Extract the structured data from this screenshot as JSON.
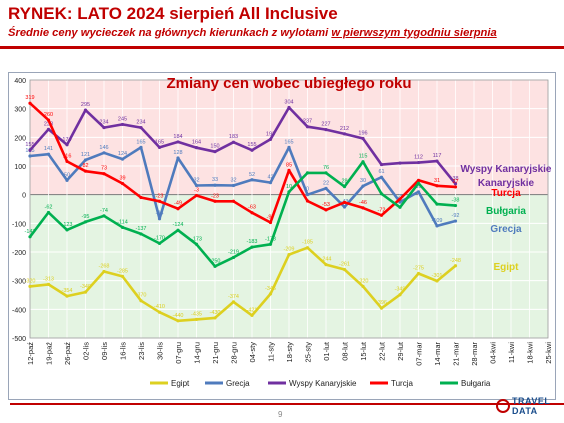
{
  "header": {
    "title": "RYNEK: LATO 2024 sierpień All Inclusive",
    "subtitle_pre": "Średnie ceny wycieczek na głównych kierunkach z wylotami ",
    "subtitle_underline": "w pierwszym tygodniu sierpnia"
  },
  "footer": {
    "page_number": "9",
    "logo_line1": "TRAVEL",
    "logo_line2": "DATA"
  },
  "chart_data": {
    "type": "line",
    "title": "Zmiany cen wobec ubiegłego roku",
    "ylim": [
      -500,
      400
    ],
    "yticks": [
      400,
      300,
      200,
      100,
      0,
      -100,
      -200,
      -300,
      -400,
      -500
    ],
    "categories": [
      "12-paź",
      "19-paź",
      "26-paź",
      "02-lis",
      "09-lis",
      "16-lis",
      "23-lis",
      "30-lis",
      "07-gru",
      "14-gru",
      "21-gru",
      "28-gru",
      "04-sty",
      "11-sty",
      "18-sty",
      "25-sty",
      "01-lut",
      "08-lut",
      "15-lut",
      "22-lut",
      "29-lut",
      "07-mar",
      "14-mar",
      "21-mar",
      "28-mar",
      "04-kwi",
      "11-kwi",
      "18-kwi",
      "25-kwi"
    ],
    "legend_position": "bottom",
    "grid": true,
    "series": [
      {
        "name": "Egipt",
        "color": "#ddd020",
        "values": [
          -320,
          -313,
          -354,
          -340,
          -268,
          -285,
          -370,
          -410,
          -440,
          -435,
          -430,
          -374,
          -421,
          -346,
          -209,
          -185,
          -244,
          -261,
          -320,
          -396,
          -349,
          -275,
          -301,
          -248,
          null,
          null,
          null,
          null,
          null
        ],
        "labels": [
          "-320",
          "-313",
          "-354",
          "-340",
          "-268",
          "-285",
          "-370",
          "-410",
          "-440",
          "-435",
          "-430",
          "-374",
          "-421",
          "-346",
          "-209",
          "-185",
          "-244",
          "-261",
          "-320",
          "-396",
          "-349",
          "-275",
          "-301",
          "-248",
          "",
          "",
          "",
          "",
          ""
        ]
      },
      {
        "name": "Grecja",
        "color": "#4f7bbd",
        "values": [
          135,
          141,
          50,
          121,
          146,
          124,
          165,
          -84,
          128,
          32,
          33,
          32,
          52,
          42,
          165,
          0,
          22,
          -43,
          30,
          61,
          -26,
          10,
          -109,
          -92,
          null,
          null,
          null,
          null,
          null
        ],
        "labels": [
          "135",
          "141",
          "50",
          "121",
          "146",
          "124",
          "165",
          "-84",
          "128",
          "32",
          "33",
          "32",
          "52",
          "42",
          "165",
          "0",
          "22",
          "-43",
          "30",
          "61",
          "-26",
          "10",
          "-109",
          "-92",
          "",
          "",
          "",
          "",
          ""
        ]
      },
      {
        "name": "Wyspy Kanaryjskie",
        "color": "#7030a0",
        "values": [
          155,
          228,
          174,
          295,
          234,
          245,
          234,
          165,
          184,
          164,
          150,
          183,
          155,
          193,
          304,
          237,
          227,
          212,
          196,
          105,
          110,
          112,
          117,
          38,
          null,
          null,
          null,
          null,
          null
        ],
        "labels": [
          "155",
          "228",
          "174",
          "295",
          "234",
          "245",
          "234",
          "165",
          "184",
          "164",
          "150",
          "183",
          "155",
          "193",
          "304",
          "237",
          "227",
          "212",
          "196",
          "",
          "",
          "112",
          "117",
          "38",
          "",
          "",
          "",
          "",
          ""
        ]
      },
      {
        "name": "Turcja",
        "color": "#ff0000",
        "values": [
          319,
          260,
          116,
          82,
          73,
          39,
          -10,
          -23,
          -49,
          -3,
          -23,
          -23,
          -63,
          -97,
          85,
          -22,
          -53,
          -27,
          -46,
          -72,
          -15,
          50,
          31,
          27,
          null,
          null,
          null,
          null,
          null
        ],
        "labels": [
          "319",
          "260",
          "116",
          "82",
          "73",
          "39",
          "",
          "-23",
          "-49",
          "-3",
          "-23",
          "",
          "-63",
          "-97",
          "85",
          "",
          "-53",
          "",
          "-46",
          "-72",
          "",
          "",
          "31",
          "27",
          "",
          "",
          "",
          "",
          ""
        ]
      },
      {
        "name": "Bułgaria",
        "color": "#00b050",
        "values": [
          -147,
          -62,
          -123,
          -95,
          -74,
          -114,
          -137,
          -170,
          -124,
          -173,
          -250,
          -219,
          -183,
          -173,
          10,
          76,
          76,
          28,
          115,
          3,
          -44,
          40,
          -33,
          -38,
          null,
          null,
          null,
          null,
          null
        ],
        "labels": [
          "-147",
          "-62",
          "-123",
          "-95",
          "-74",
          "-114",
          "-137",
          "-170",
          "-124",
          "-173",
          "-250",
          "-219",
          "-183",
          "-173",
          "10",
          "",
          "76",
          "28",
          "115",
          "",
          "",
          "",
          "",
          "-38",
          "",
          "",
          "",
          "",
          ""
        ]
      }
    ],
    "series_labels": [
      "Wyspy Kanaryjskie",
      "Turcja",
      "Bułgaria",
      "Grecja",
      "Egipt"
    ]
  }
}
